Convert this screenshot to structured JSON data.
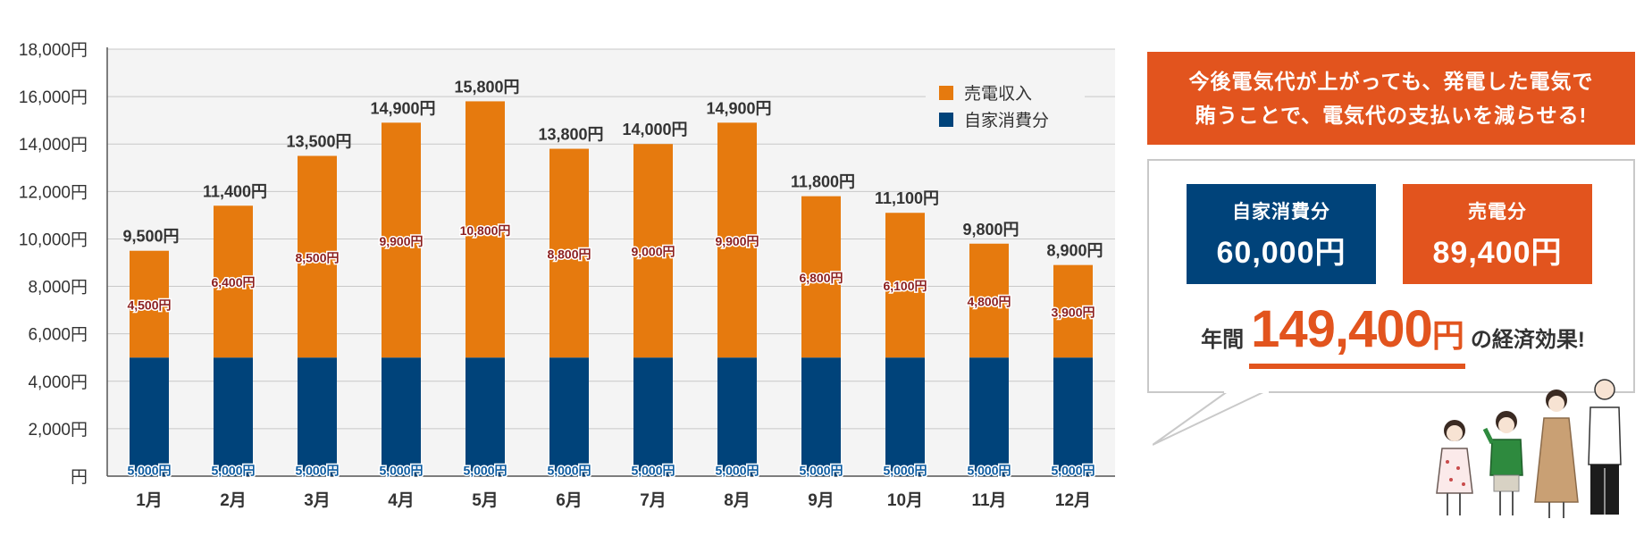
{
  "chart_data": {
    "type": "bar",
    "stacked": true,
    "categories": [
      "1月",
      "2月",
      "3月",
      "4月",
      "5月",
      "6月",
      "7月",
      "8月",
      "9月",
      "10月",
      "11月",
      "12月"
    ],
    "series": [
      {
        "name": "自家消費分",
        "color": "#00437a",
        "values": [
          5000,
          5000,
          5000,
          5000,
          5000,
          5000,
          5000,
          5000,
          5000,
          5000,
          5000,
          5000
        ]
      },
      {
        "name": "売電収入",
        "color": "#e67a0e",
        "values": [
          4500,
          6400,
          8500,
          9900,
          10800,
          8800,
          9000,
          9900,
          6800,
          6100,
          4800,
          3900
        ]
      }
    ],
    "bar_label_text": {
      "self": [
        "5,000円",
        "5,000円",
        "5,000円",
        "5,000円",
        "5,000円",
        "5,000円",
        "5,000円",
        "5,000円",
        "5,000円",
        "5,000円",
        "5,000円",
        "5,000円"
      ],
      "sell": [
        "4,500円",
        "6,400円",
        "8,500円",
        "9,900円",
        "10,800円",
        "8,800円",
        "9,000円",
        "9,900円",
        "6,800円",
        "6,100円",
        "4,800円",
        "3,900円"
      ]
    },
    "totals": [
      9500,
      11400,
      13500,
      14900,
      15800,
      13800,
      14000,
      14900,
      11800,
      11100,
      9800,
      8900
    ],
    "total_labels": [
      "9,500円",
      "11,400円",
      "13,500円",
      "14,900円",
      "15,800円",
      "13,800円",
      "14,000円",
      "14,900円",
      "11,800円",
      "11,100円",
      "9,800円",
      "8,900円"
    ],
    "y_ticks": [
      0,
      2000,
      4000,
      6000,
      8000,
      10000,
      12000,
      14000,
      16000,
      18000
    ],
    "y_tick_labels": [
      "円",
      "2,000円",
      "4,000円",
      "6,000円",
      "8,000円",
      "10,000円",
      "12,000円",
      "14,000円",
      "16,000円",
      "18,000円"
    ],
    "ylim": [
      0,
      18000
    ],
    "grid": true,
    "legend_position": "top-right",
    "legend": [
      {
        "label": "売電収入",
        "color": "#e67a0e"
      },
      {
        "label": "自家消費分",
        "color": "#00437a"
      }
    ]
  },
  "colors": {
    "self_consumption": "#00437a",
    "sale": "#e67a0e",
    "accent": "#e2541e",
    "sale_label": "#8b1e1e",
    "self_label": "#0a5aa0"
  },
  "callout": {
    "line1": "今後電気代が上がっても、発電した電気で",
    "line2": "賄うことで、電気代の支払いを減らせる!"
  },
  "summary": {
    "self_label": "自家消費分",
    "self_value": "60,000円",
    "sell_label": "売電分",
    "sell_value": "89,400円",
    "annual_prefix": "年間",
    "annual_value": "149,400",
    "annual_unit": "円",
    "annual_suffix": "の経済効果!"
  },
  "illustration": "family-illustration"
}
